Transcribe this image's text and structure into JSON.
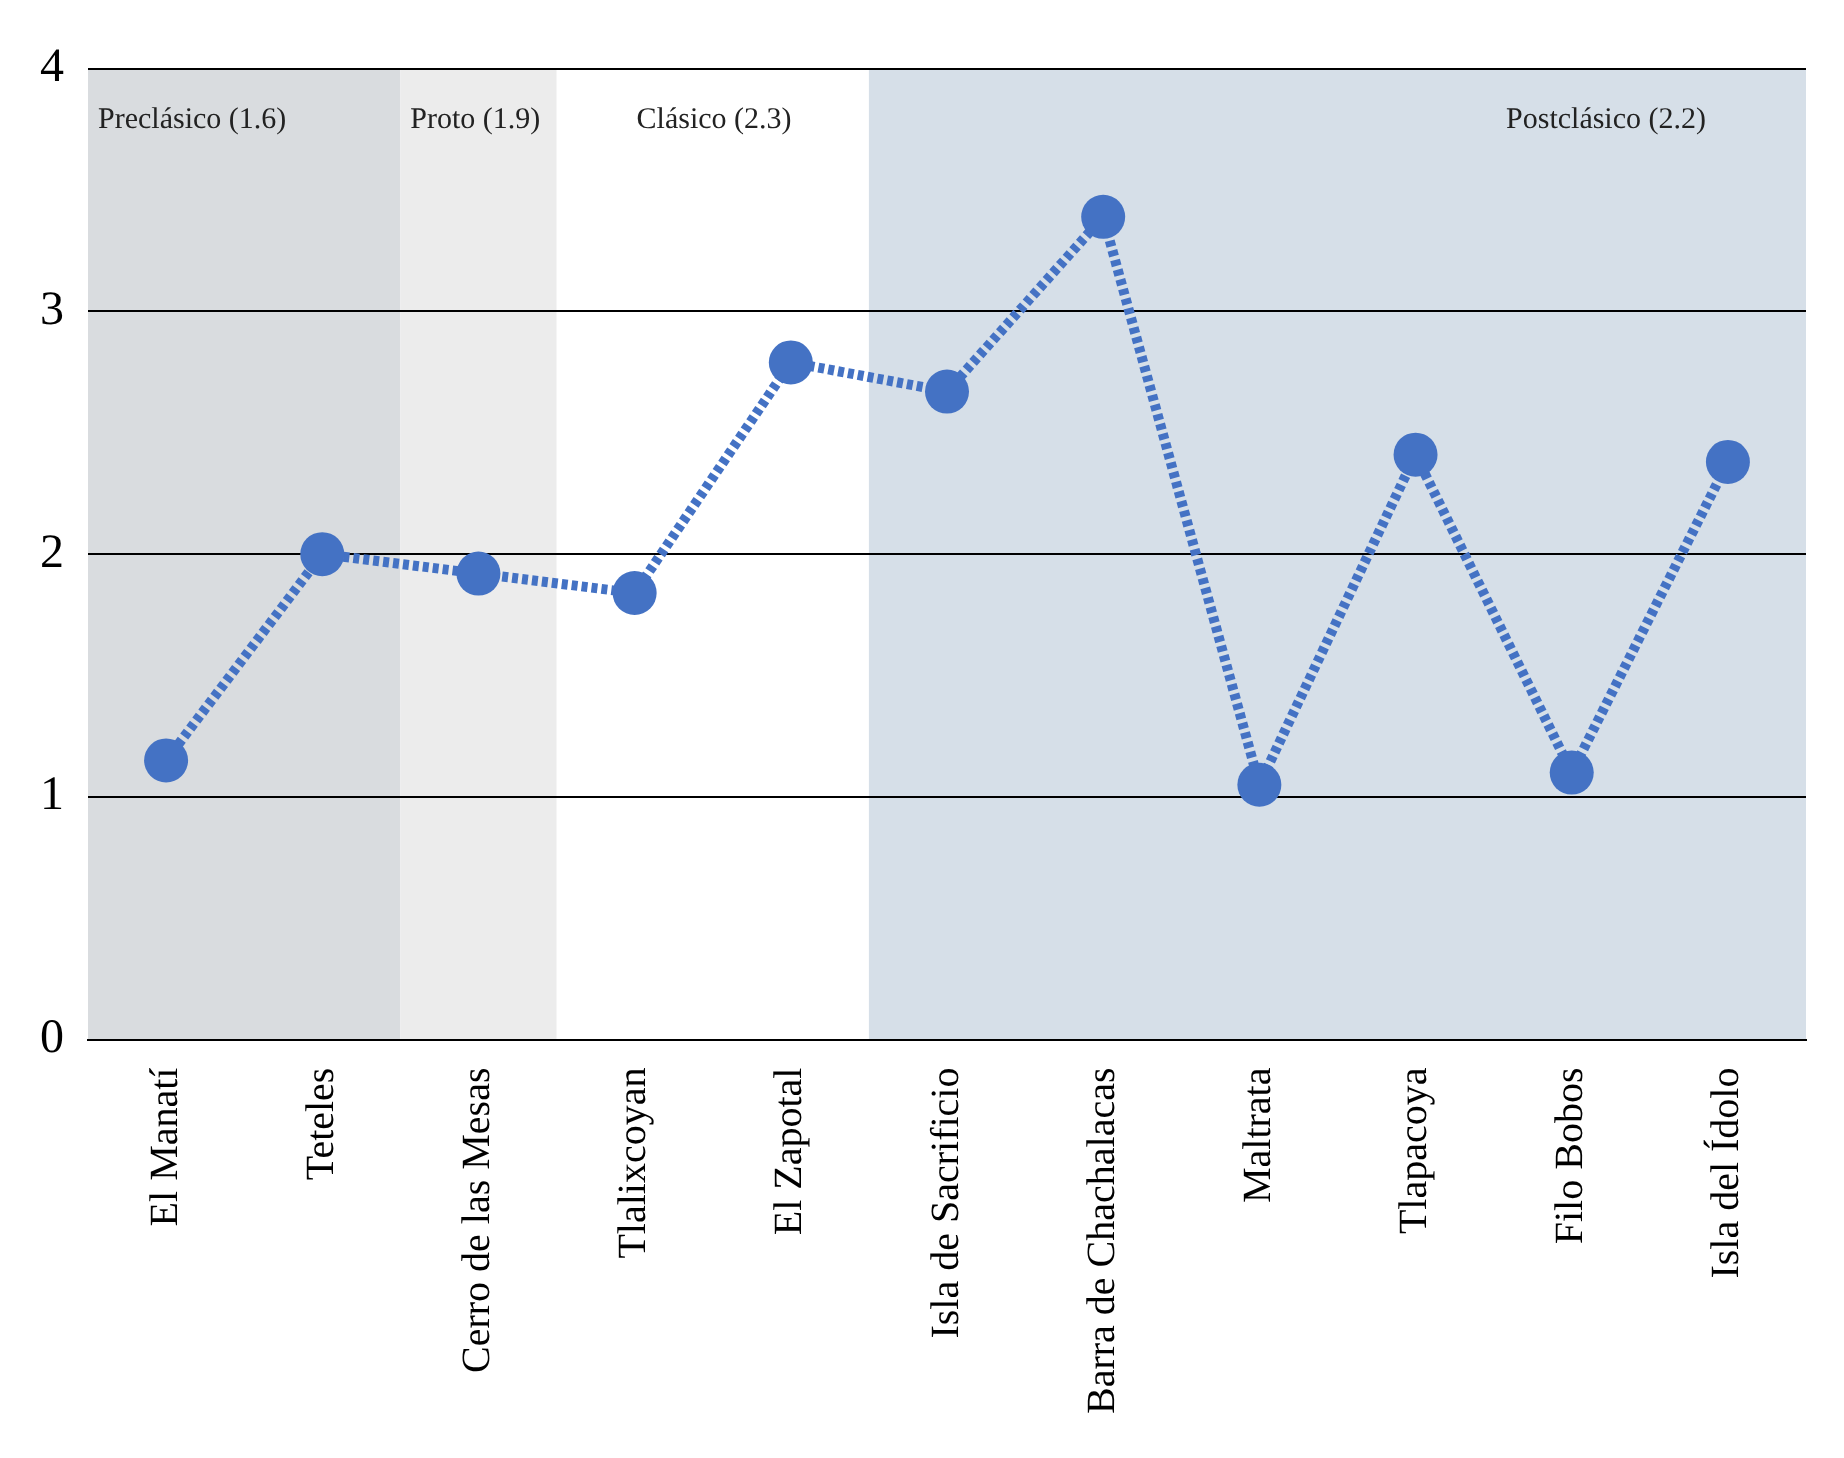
{
  "chart_data": {
    "type": "line",
    "categories": [
      "El Manatí",
      "Teteles",
      "Cerro de las Mesas",
      "Tlalixcoyan",
      "El Zapotal",
      "Isla de Sacrificio",
      "Barra de Chachalacas",
      "Maltrata",
      "Tlapacoya",
      "Filo Bobos",
      "Isla del Ídolo"
    ],
    "series": [
      {
        "color": "#4472c4",
        "values": [
          1.15,
          2.0,
          1.92,
          1.84,
          2.79,
          2.67,
          3.39,
          1.05,
          2.41,
          1.1,
          2.38
        ]
      }
    ],
    "ylim": [
      0,
      4
    ],
    "yticks": [
      0,
      1,
      2,
      3,
      4
    ],
    "grid": "y",
    "legend": false,
    "marker": "circle",
    "line_style": "dotted",
    "annotations": [
      "Clásico (2.3)"
    ],
    "bands": [
      {
        "axis": "x",
        "from": "El Manatí",
        "to": "Teteles",
        "label": "Preclásico (1.6)",
        "color": "#d9dcdf"
      },
      {
        "axis": "x",
        "from": "Cerro de las Mesas",
        "to": "Cerro de las Mesas",
        "label": "Proto (1.9)",
        "color": "#ececec"
      },
      {
        "axis": "x",
        "from": "Isla de Sacrificio",
        "to": "Isla del Ídolo",
        "label": "Postclásico (2.2)",
        "color": "#d6dfe8"
      }
    ]
  }
}
